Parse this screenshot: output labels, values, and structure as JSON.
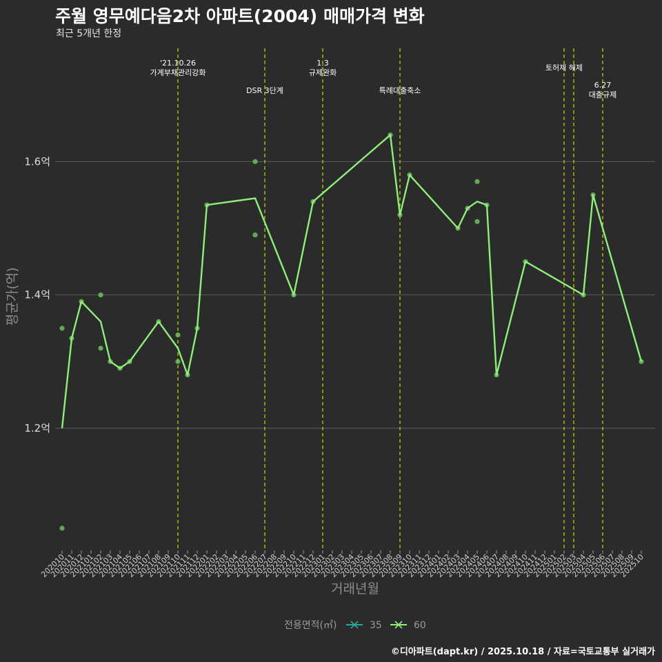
{
  "title": "주월 영무예다음2차 아파트(2004) 매매가격 변화",
  "subtitle": "최근 5개년 한정",
  "caption": "©디아파트(dapt.kr) / 2025.10.18 / 자료=국토교통부 실거래가",
  "colors": {
    "background": "#2b2b2b",
    "grid": "#5e5e5e",
    "line60": "#90ee7a",
    "point60": "#6fbf5f",
    "line35": "#2aa7a0",
    "event": "#d6d600"
  },
  "chart_data": {
    "type": "line",
    "xlabel": "거래년월",
    "ylabel": "평균가(억)",
    "ylim": [
      1.02,
      1.77
    ],
    "yticks": [
      {
        "value": 1.2,
        "label": "1.2억"
      },
      {
        "value": 1.4,
        "label": "1.4억"
      },
      {
        "value": 1.6,
        "label": "1.6억"
      }
    ],
    "categories": [
      "202010",
      "202011",
      "202012",
      "202101",
      "202102",
      "202103",
      "202104",
      "202105",
      "202106",
      "202107",
      "202108",
      "202109",
      "202110",
      "202111",
      "202112",
      "202201",
      "202202",
      "202203",
      "202204",
      "202205",
      "202206",
      "202207",
      "202208",
      "202209",
      "202210",
      "202211",
      "202212",
      "202301",
      "202302",
      "202303",
      "202304",
      "202305",
      "202306",
      "202307",
      "202308",
      "202309",
      "202310",
      "202311",
      "202312",
      "202401",
      "202402",
      "202403",
      "202404",
      "202405",
      "202406",
      "202407",
      "202408",
      "202409",
      "202410",
      "202411",
      "202412",
      "202501",
      "202502",
      "202503",
      "202504",
      "202505",
      "202506",
      "202507",
      "202508",
      "202509",
      "202510"
    ],
    "series": [
      {
        "name": "60",
        "line": [
          {
            "x": "202010",
            "y": 1.2
          },
          {
            "x": "202011",
            "y": 1.335
          },
          {
            "x": "202012",
            "y": 1.39
          },
          {
            "x": "202102",
            "y": 1.36
          },
          {
            "x": "202103",
            "y": 1.3
          },
          {
            "x": "202104",
            "y": 1.29
          },
          {
            "x": "202105",
            "y": 1.3
          },
          {
            "x": "202108",
            "y": 1.36
          },
          {
            "x": "202110",
            "y": 1.32
          },
          {
            "x": "202111",
            "y": 1.28
          },
          {
            "x": "202112",
            "y": 1.35
          },
          {
            "x": "202201",
            "y": 1.535
          },
          {
            "x": "202206",
            "y": 1.545
          },
          {
            "x": "202210",
            "y": 1.4
          },
          {
            "x": "202212",
            "y": 1.54
          },
          {
            "x": "202308",
            "y": 1.64
          },
          {
            "x": "202309",
            "y": 1.52
          },
          {
            "x": "202310",
            "y": 1.58
          },
          {
            "x": "202403",
            "y": 1.5
          },
          {
            "x": "202404",
            "y": 1.53
          },
          {
            "x": "202405",
            "y": 1.54
          },
          {
            "x": "202406",
            "y": 1.535
          },
          {
            "x": "202407",
            "y": 1.28
          },
          {
            "x": "202410",
            "y": 1.45
          },
          {
            "x": "202504",
            "y": 1.4
          },
          {
            "x": "202505",
            "y": 1.55
          },
          {
            "x": "202510",
            "y": 1.3
          }
        ],
        "points": [
          {
            "x": "202010",
            "y": 1.35
          },
          {
            "x": "202010",
            "y": 1.05
          },
          {
            "x": "202011",
            "y": 1.335
          },
          {
            "x": "202012",
            "y": 1.39
          },
          {
            "x": "202102",
            "y": 1.4
          },
          {
            "x": "202102",
            "y": 1.32
          },
          {
            "x": "202103",
            "y": 1.3
          },
          {
            "x": "202104",
            "y": 1.29
          },
          {
            "x": "202105",
            "y": 1.3
          },
          {
            "x": "202108",
            "y": 1.36
          },
          {
            "x": "202110",
            "y": 1.34
          },
          {
            "x": "202110",
            "y": 1.3
          },
          {
            "x": "202111",
            "y": 1.28
          },
          {
            "x": "202112",
            "y": 1.35
          },
          {
            "x": "202201",
            "y": 1.535
          },
          {
            "x": "202206",
            "y": 1.6
          },
          {
            "x": "202206",
            "y": 1.49
          },
          {
            "x": "202210",
            "y": 1.4
          },
          {
            "x": "202212",
            "y": 1.54
          },
          {
            "x": "202308",
            "y": 1.64
          },
          {
            "x": "202309",
            "y": 1.52
          },
          {
            "x": "202310",
            "y": 1.58
          },
          {
            "x": "202403",
            "y": 1.5
          },
          {
            "x": "202404",
            "y": 1.53
          },
          {
            "x": "202405",
            "y": 1.57
          },
          {
            "x": "202405",
            "y": 1.51
          },
          {
            "x": "202406",
            "y": 1.535
          },
          {
            "x": "202407",
            "y": 1.28
          },
          {
            "x": "202410",
            "y": 1.45
          },
          {
            "x": "202504",
            "y": 1.4
          },
          {
            "x": "202505",
            "y": 1.55
          },
          {
            "x": "202510",
            "y": 1.3
          }
        ]
      }
    ],
    "events": [
      {
        "x": 12.0,
        "lines": [
          "'21.10.26",
          "가계부채관리강화"
        ],
        "level": 0
      },
      {
        "x": 21.0,
        "lines": [
          "DSR 3단계"
        ],
        "level": 2
      },
      {
        "x": 27.0,
        "lines": [
          "1.3",
          "규제완화"
        ],
        "level": 0
      },
      {
        "x": 35.0,
        "lines": [
          "특례대출축소"
        ],
        "level": 2
      },
      {
        "x": 52.0,
        "lines": [
          "토허제 해제"
        ],
        "level": 1
      },
      {
        "x": 53.0,
        "lines": [],
        "level": 1
      },
      {
        "x": 56.0,
        "lines": [
          "6.27",
          "대출규제"
        ],
        "level": 3
      }
    ],
    "legend": {
      "title": "전용면적(㎡)",
      "position": "bottom",
      "entries": [
        {
          "label": "35",
          "color": "#2aa7a0"
        },
        {
          "label": "60",
          "color": "#90ee7a"
        }
      ]
    }
  }
}
